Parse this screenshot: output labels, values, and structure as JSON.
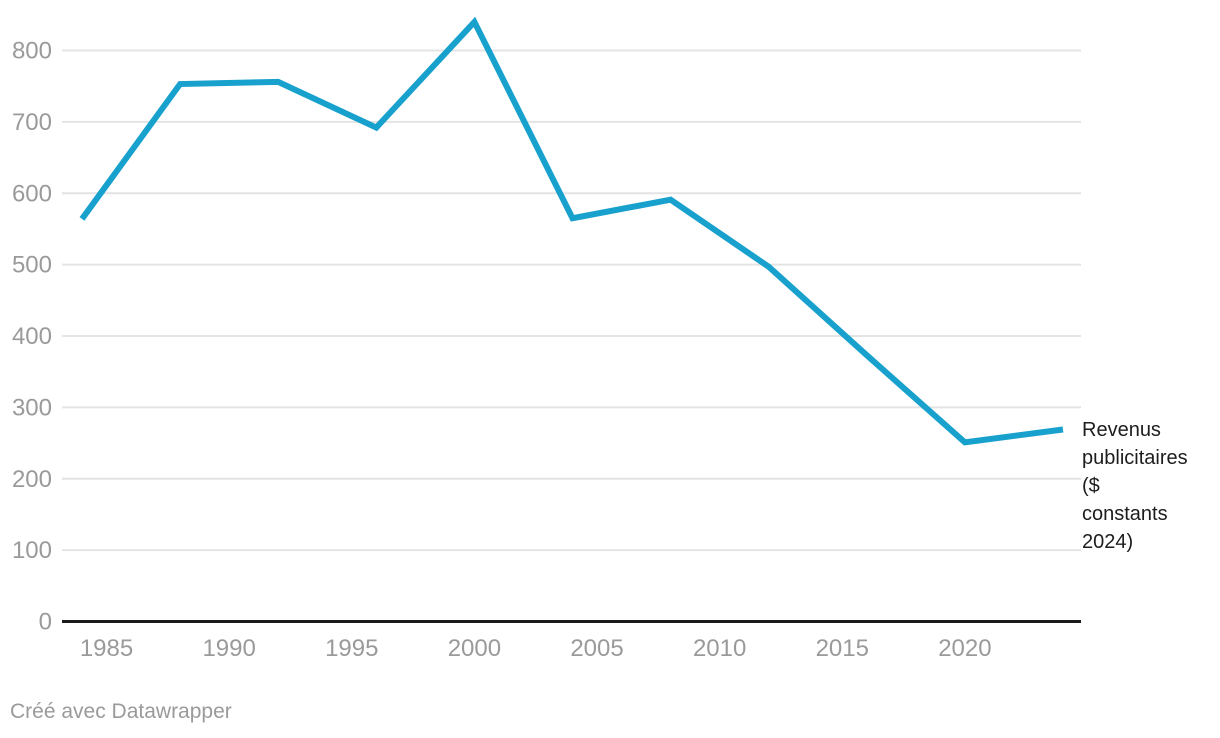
{
  "chart_data": {
    "type": "line",
    "title": "",
    "x": [
      1984,
      1988,
      1992,
      1996,
      2000,
      2004,
      2008,
      2012,
      2016,
      2020,
      2024
    ],
    "series": [
      {
        "name": "Revenus publicitaires ($ constants 2024)",
        "values": [
          564,
          753,
          756,
          692,
          840,
          565,
          591,
          497,
          373,
          251,
          269
        ]
      }
    ],
    "x_ticks": [
      1985,
      1990,
      1995,
      2000,
      2005,
      2010,
      2015,
      2020
    ],
    "y_ticks": [
      0,
      100,
      200,
      300,
      400,
      500,
      600,
      700,
      800
    ],
    "xlim": [
      1984,
      2024
    ],
    "ylim": [
      0,
      850
    ],
    "xlabel": "",
    "ylabel": "",
    "grid": "horizontal",
    "legend_position": "right-of-line-end",
    "line_color": "#18a1cd"
  },
  "legend": {
    "text": "Revenus\npublicitaires\n($\nconstants\n2024)"
  },
  "footer": {
    "attribution": "Créé avec Datawrapper"
  },
  "colors": {
    "line": "#18a1cd",
    "grid": "#e4e4e4",
    "axis": "#1a1a1a",
    "tick_text": "#9a9a9a",
    "legend_text": "#1d1d1d",
    "footer_text": "#9a9a9a",
    "background": "#ffffff"
  }
}
